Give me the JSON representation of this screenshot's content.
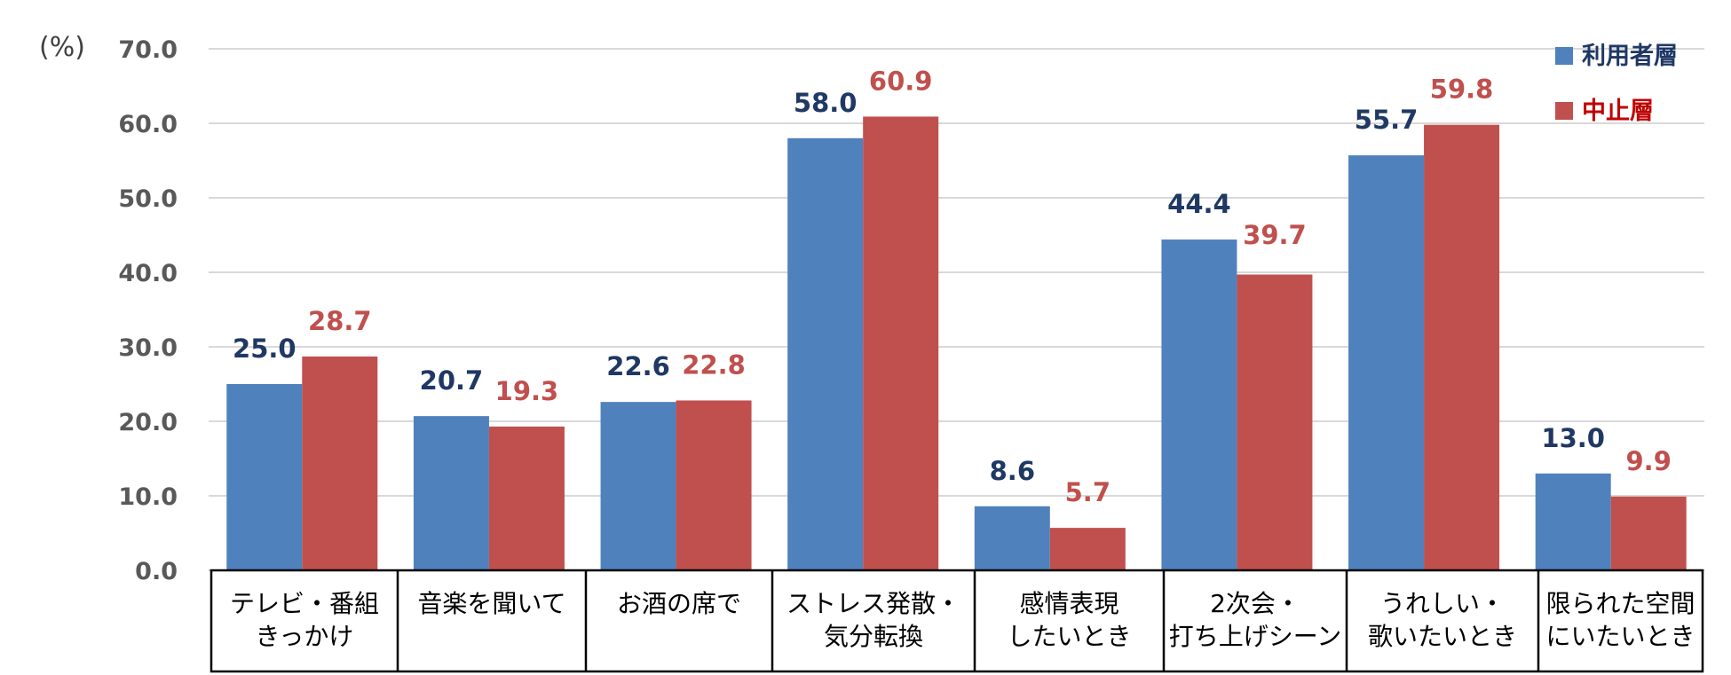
{
  "chart_data": {
    "type": "bar",
    "unit_label": "(%)",
    "ylim": [
      0,
      70
    ],
    "yticks": [
      "0.0",
      "10.0",
      "20.0",
      "30.0",
      "40.0",
      "50.0",
      "60.0",
      "70.0"
    ],
    "grid": true,
    "legend_position": "top-right",
    "categories": [
      [
        "テレビ・番組",
        "きっかけ"
      ],
      [
        "音楽を聞いて"
      ],
      [
        "お酒の席で"
      ],
      [
        "ストレス発散・",
        "気分転換"
      ],
      [
        "感情表現",
        "したいとき"
      ],
      [
        "2次会・",
        "打ち上げシーン"
      ],
      [
        "うれしい・",
        "歌いたいとき"
      ],
      [
        "限られた空間",
        "にいたいとき"
      ]
    ],
    "series": [
      {
        "name": "利用者層",
        "color": "#4F81BD",
        "label_color": "#1F3864",
        "values": [
          25.0,
          20.7,
          22.6,
          58.0,
          8.6,
          44.4,
          55.7,
          13.0
        ]
      },
      {
        "name": "中止層",
        "color": "#C0504D",
        "label_color": "#C0504D",
        "values": [
          28.7,
          19.3,
          22.8,
          60.9,
          5.7,
          39.7,
          59.8,
          9.9
        ]
      }
    ],
    "legend_text_colors": [
      "#1F3864",
      "#C00000"
    ]
  }
}
